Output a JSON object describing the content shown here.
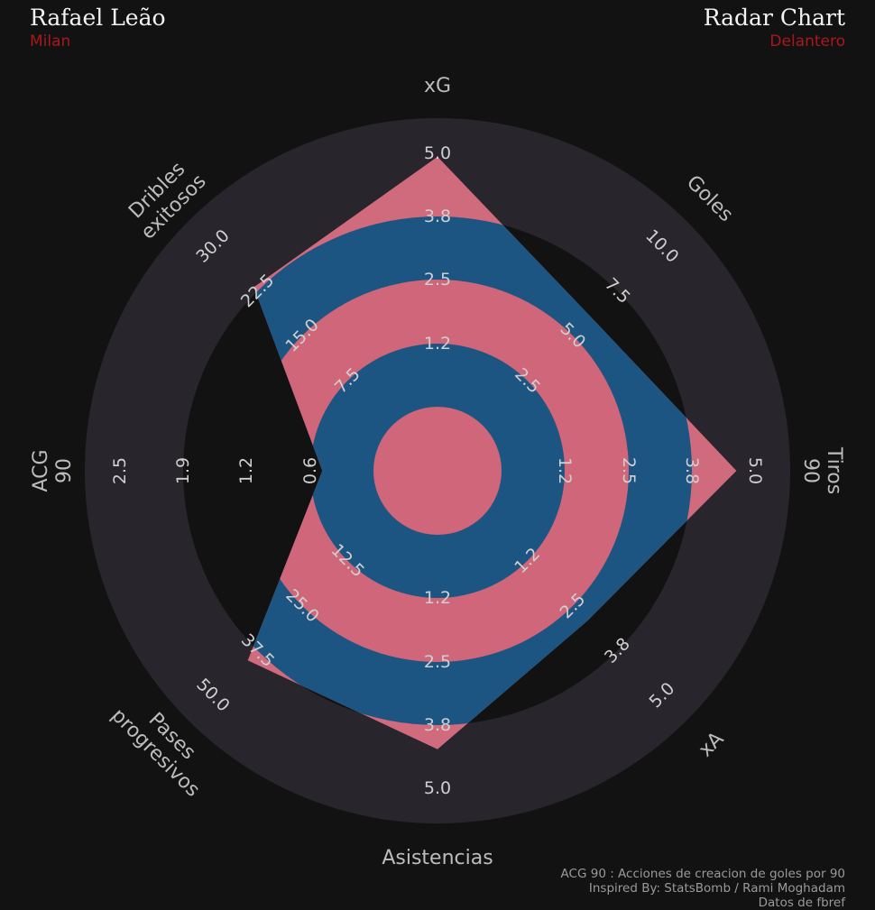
{
  "header": {
    "player": "Rafael Leão",
    "team": "Milan",
    "chart_title": "Radar Chart",
    "position": "Delantero"
  },
  "footer": {
    "line1": "ACG 90 : Acciones de creacion de goles por 90",
    "line2": "Inspired By: StatsBomb / Rami Moghadam",
    "line3": "Datos de fbref"
  },
  "colors": {
    "background": "#121212",
    "ring_outer": "#28262c",
    "ring_blue": "#1d5582",
    "ring_pink": "#cf6679",
    "polygon_pink": "#d06a7d",
    "polygon_blue": "#1d5582"
  },
  "chart_data": {
    "type": "radar",
    "title": "Radar Chart",
    "axes": [
      {
        "label": "xG",
        "ticks": [
          "1.2",
          "2.5",
          "3.8",
          "5.0"
        ],
        "min": 0,
        "max": 5.0,
        "value": 4.9
      },
      {
        "label": "Goles",
        "ticks": [
          "2.5",
          "5.0",
          "7.5",
          "10.0"
        ],
        "min": 0,
        "max": 10.0,
        "value": 6.0
      },
      {
        "label": "Tiros 90",
        "ticks": [
          "1.2",
          "2.5",
          "3.8",
          "5.0"
        ],
        "min": 0,
        "max": 5.0,
        "value": 4.6
      },
      {
        "label": "xA",
        "ticks": [
          "1.2",
          "2.5",
          "3.8",
          "5.0"
        ],
        "min": 0,
        "max": 5.0,
        "value": 2.9
      },
      {
        "label": "Asistencias",
        "ticks": [
          "1.2",
          "2.5",
          "3.8",
          "5.0"
        ],
        "min": 0,
        "max": 5.0,
        "value": 4.2
      },
      {
        "label": "Pases progresivos",
        "ticks": [
          "12.5",
          "25.0",
          "37.5",
          "50.0"
        ],
        "min": 0,
        "max": 50.0,
        "value": 40.0
      },
      {
        "label": "ACG 90",
        "ticks": [
          "0.6",
          "1.2",
          "1.9",
          "2.5"
        ],
        "min": 0,
        "max": 2.5,
        "value": 0.5
      },
      {
        "label": "Dribles exitosos",
        "ticks": [
          "7.5",
          "15.0",
          "22.5",
          "30.0"
        ],
        "min": 0,
        "max": 30.0,
        "value": 23.0
      }
    ]
  }
}
